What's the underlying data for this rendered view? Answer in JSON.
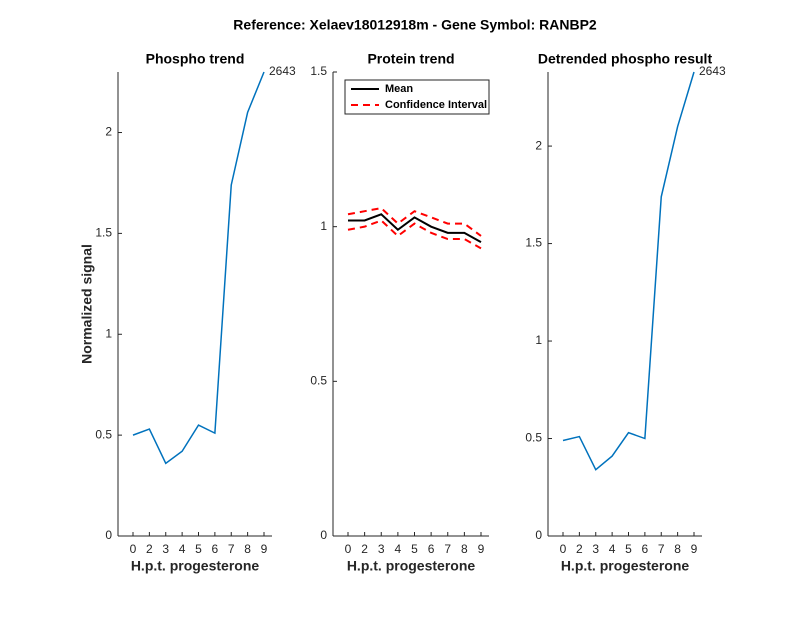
{
  "title": "Reference:  Xelaev18012918m - Gene Symbol:  RANBP2",
  "chart_data": [
    {
      "type": "line",
      "title": "Phospho trend",
      "xlabel": "H.p.t. progesterone",
      "ylabel": "Normalized signal",
      "categories": [
        "0",
        "2",
        "3",
        "4",
        "5",
        "6",
        "7",
        "8",
        "9"
      ],
      "series": [
        {
          "color": "#0072bd",
          "values": [
            0.5,
            0.53,
            0.36,
            0.42,
            0.55,
            0.51,
            1.74,
            2.1,
            2.3
          ]
        }
      ],
      "annotation": "2643",
      "ylim": [
        0,
        2.3
      ],
      "yticks": [
        0,
        0.5,
        1,
        1.5,
        2
      ]
    },
    {
      "type": "line",
      "title": "Protein trend",
      "xlabel": "H.p.t. progesterone",
      "categories": [
        "0",
        "2",
        "3",
        "4",
        "5",
        "6",
        "7",
        "8",
        "9"
      ],
      "series": [
        {
          "name": "Mean",
          "color": "#000000",
          "values": [
            1.02,
            1.02,
            1.04,
            0.99,
            1.03,
            1.0,
            0.98,
            0.98,
            0.95
          ]
        },
        {
          "name": "Confidence Interval",
          "color": "#ff0000",
          "dashed": true,
          "values": [
            1.04,
            1.05,
            1.06,
            1.01,
            1.05,
            1.03,
            1.01,
            1.01,
            0.97
          ],
          "lower": [
            0.99,
            1.0,
            1.02,
            0.97,
            1.01,
            0.98,
            0.96,
            0.96,
            0.93
          ]
        }
      ],
      "legend": "northwest",
      "ylim": [
        0,
        1.5
      ],
      "yticks": [
        0,
        0.5,
        1,
        1.5
      ]
    },
    {
      "type": "line",
      "title": "Detrended phospho result",
      "xlabel": "H.p.t. progesterone",
      "categories": [
        "0",
        "2",
        "3",
        "4",
        "5",
        "6",
        "7",
        "8",
        "9"
      ],
      "series": [
        {
          "color": "#0072bd",
          "values": [
            0.49,
            0.51,
            0.34,
            0.41,
            0.53,
            0.5,
            1.74,
            2.1,
            2.38
          ]
        }
      ],
      "annotation": "2643",
      "ylim": [
        0,
        2.38
      ],
      "yticks": [
        0,
        0.5,
        1,
        1.5,
        2
      ]
    }
  ]
}
